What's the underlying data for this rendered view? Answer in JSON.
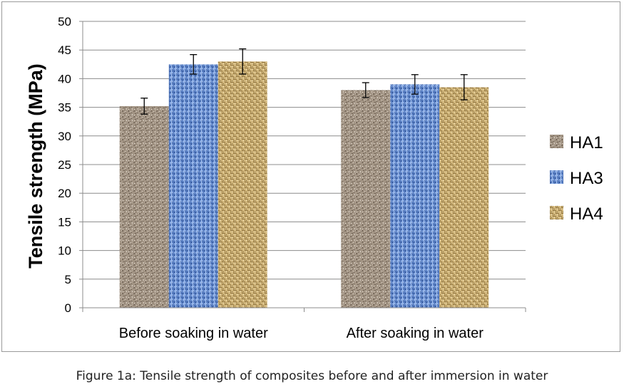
{
  "chart_data": {
    "type": "bar",
    "ylabel": "Tensile strength (MPa)",
    "xlabel": "",
    "ylim": [
      0,
      50
    ],
    "yticks": [
      0,
      5,
      10,
      15,
      20,
      25,
      30,
      35,
      40,
      45,
      50
    ],
    "grid": true,
    "legend_position": "right",
    "categories": [
      "Before soaking in water",
      "After soaking in water"
    ],
    "series": [
      {
        "name": "HA1",
        "values": [
          35.2,
          38.0
        ],
        "errors": [
          1.4,
          1.3
        ],
        "color": "#a89a8c",
        "pattern": "speckled-granite"
      },
      {
        "name": "HA3",
        "values": [
          42.5,
          39.0
        ],
        "errors": [
          1.7,
          1.7
        ],
        "color": "#5b84c8",
        "pattern": "blue-weave"
      },
      {
        "name": "HA4",
        "values": [
          43.0,
          38.5
        ],
        "errors": [
          2.2,
          2.2
        ],
        "color": "#c9a968",
        "pattern": "woven-tan"
      }
    ]
  },
  "caption": "Figure 1a: Tensile strength of composites before and after immersion in water"
}
